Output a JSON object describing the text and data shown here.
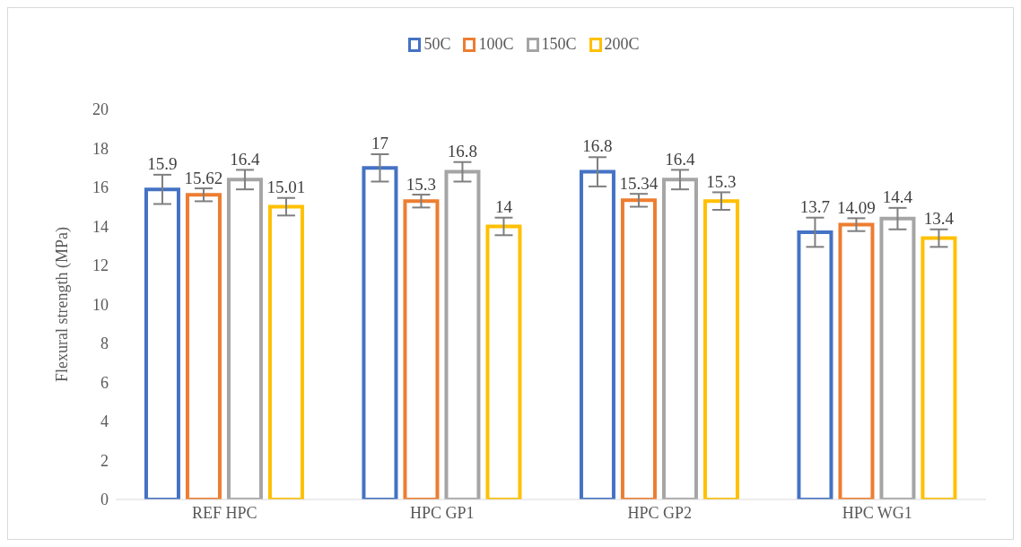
{
  "chart_data": {
    "type": "bar",
    "ylabel": "Flexural strength (MPa)",
    "categories": [
      "REF HPC",
      "HPC GP1",
      "HPC GP2",
      "HPC WG1"
    ],
    "series": [
      {
        "name": "50C",
        "color": "#4472c4",
        "values": [
          15.9,
          17,
          16.8,
          13.7
        ],
        "errors": [
          0.75,
          0.7,
          0.75,
          0.75
        ]
      },
      {
        "name": "100C",
        "color": "#ed7d31",
        "values": [
          15.62,
          15.3,
          15.34,
          14.09
        ],
        "errors": [
          0.33,
          0.33,
          0.33,
          0.33
        ]
      },
      {
        "name": "150C",
        "color": "#a5a5a5",
        "values": [
          16.4,
          16.8,
          16.4,
          14.4
        ],
        "errors": [
          0.5,
          0.5,
          0.5,
          0.55
        ]
      },
      {
        "name": "200C",
        "color": "#ffc000",
        "values": [
          15.01,
          14,
          15.3,
          13.4
        ],
        "errors": [
          0.45,
          0.45,
          0.45,
          0.45
        ]
      }
    ],
    "ylim": [
      0,
      20
    ],
    "yticks": [
      0,
      2,
      4,
      6,
      8,
      10,
      12,
      14,
      16,
      18,
      20
    ],
    "grid": false,
    "legend": "top",
    "data_labels": true
  }
}
